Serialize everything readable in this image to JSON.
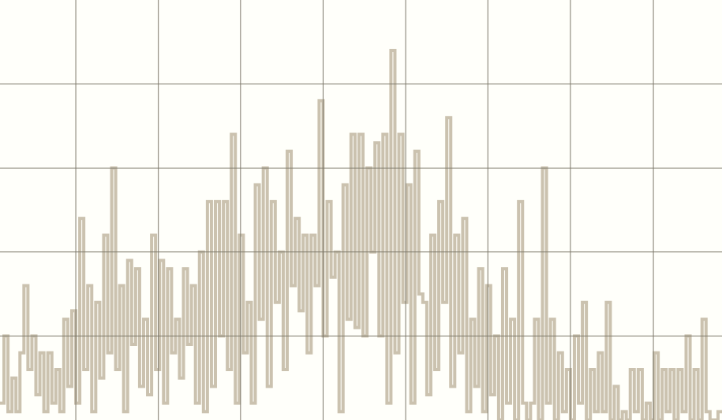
{
  "chart_data": {
    "type": "line",
    "step": true,
    "color": "#cbc2af",
    "grid": true,
    "xlim": [
      0,
      181
    ],
    "xticks": [
      19,
      39.7,
      60.3,
      81,
      101.7,
      122.3,
      143,
      163.8
    ],
    "ylim": [
      0,
      5
    ],
    "yticks": [
      1,
      2,
      3,
      4
    ],
    "values": [
      0.2,
      1.0,
      0.1,
      0.5,
      0.1,
      0.8,
      1.6,
      0.6,
      1.0,
      0.3,
      0.8,
      0.1,
      0.8,
      0.2,
      0.6,
      0.1,
      1.2,
      0.4,
      1.3,
      0.2,
      2.4,
      0.6,
      1.6,
      0.1,
      1.4,
      0.5,
      2.2,
      0.8,
      3.0,
      0.6,
      1.6,
      0.1,
      1.9,
      0.9,
      1.8,
      0.4,
      1.2,
      0.3,
      2.2,
      0.6,
      1.9,
      0.2,
      1.8,
      0.8,
      1.2,
      0.5,
      1.8,
      0.9,
      1.6,
      0.2,
      2.0,
      0.1,
      2.6,
      0.4,
      2.6,
      1.0,
      2.6,
      0.6,
      3.4,
      0.2,
      2.2,
      0.8,
      1.4,
      0.2,
      2.8,
      1.2,
      3.0,
      0.4,
      2.6,
      1.4,
      2.0,
      0.6,
      3.2,
      1.6,
      2.4,
      1.3,
      2.2,
      0.8,
      2.2,
      1.6,
      3.8,
      1.0,
      2.6,
      1.7,
      2.0,
      0.1,
      2.8,
      1.2,
      3.4,
      1.1,
      3.4,
      1.0,
      3.0,
      2.0,
      3.3,
      1.0,
      3.4,
      0.2,
      4.4,
      0.8,
      3.4,
      1.4,
      2.8,
      0.2,
      3.2,
      1.5,
      1.4,
      0.3,
      2.2,
      0.6,
      2.6,
      1.4,
      3.6,
      0.4,
      2.2,
      0.8,
      2.4,
      0.1,
      1.2,
      0.4,
      1.8,
      0.1,
      1.6,
      0.3,
      1.0,
      0.0,
      1.8,
      0.2,
      1.2,
      0.0,
      2.6,
      0.2,
      0.0,
      0.2,
      1.2,
      0.0,
      3.0,
      0.2,
      1.2,
      0.0,
      0.8,
      0.1,
      0.6,
      0.0,
      1.0,
      0.2,
      1.4,
      0.0,
      0.6,
      0.1,
      0.8,
      0.1,
      1.4,
      0.0,
      0.4,
      0.0,
      0.1,
      0.0,
      0.6,
      0.1,
      0.6,
      0.0,
      0.2,
      0.0,
      0.8,
      0.0,
      0.6,
      0.1,
      0.6,
      0.0,
      0.6,
      0.1,
      1.0,
      0.0,
      0.6,
      0.0,
      1.2,
      0.1,
      0.0,
      0.0,
      0.1
    ]
  }
}
